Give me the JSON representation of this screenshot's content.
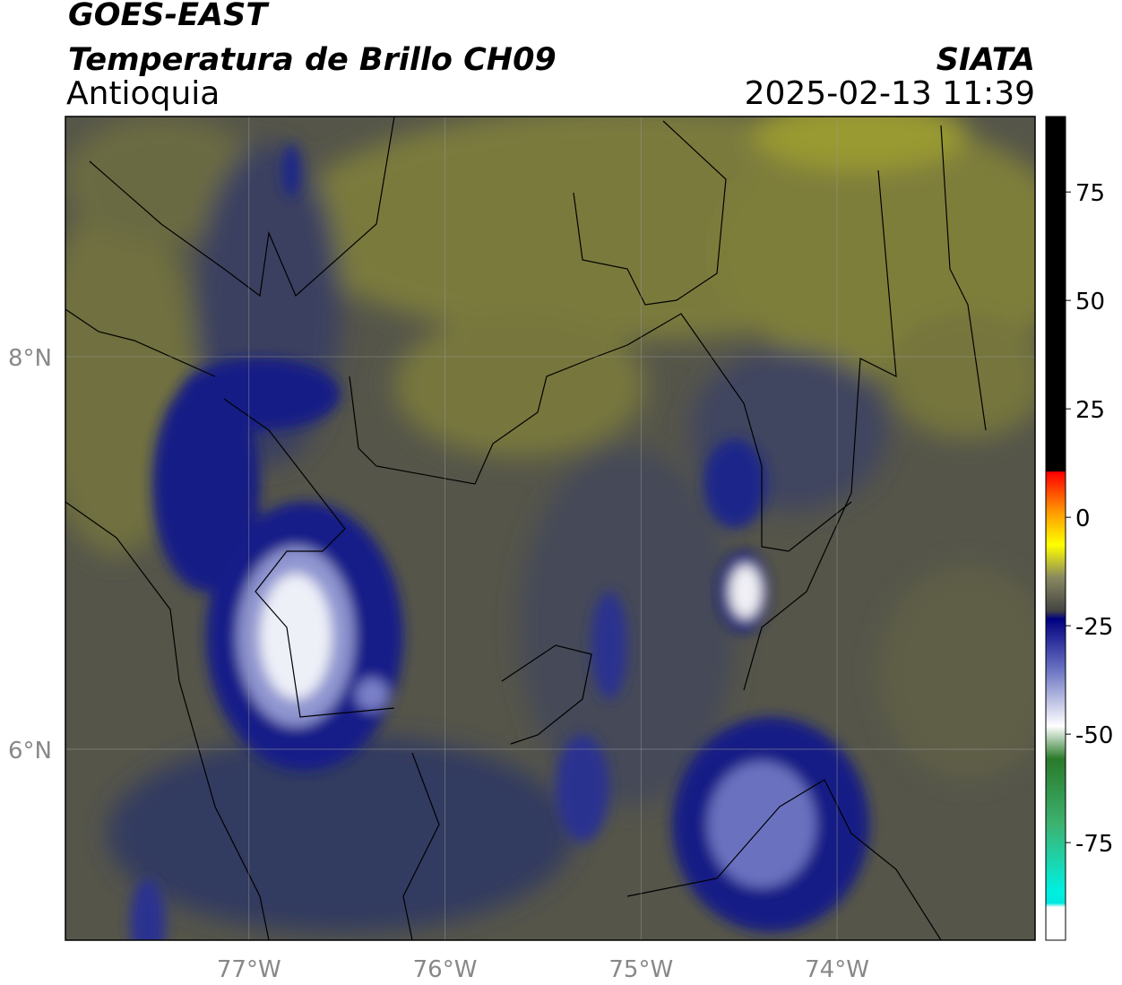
{
  "header": {
    "title": "GOES-EAST",
    "subtitle": "Temperatura de Brillo CH09",
    "region": "Antioquia",
    "source": "SIATA",
    "datetime": "2025-02-13 11:39"
  },
  "map": {
    "xlim": [
      -77.936,
      -72.99
    ],
    "ylim": [
      5.027,
      9.224
    ],
    "xticks": [
      {
        "value": -77,
        "label": "77°W"
      },
      {
        "value": -76,
        "label": "76°W"
      },
      {
        "value": -75,
        "label": "75°W"
      },
      {
        "value": -74,
        "label": "74°W"
      }
    ],
    "yticks": [
      {
        "value": 8,
        "label": "8°N"
      },
      {
        "value": 6,
        "label": "6°N"
      }
    ]
  },
  "colorbar": {
    "lim": [
      -97.5,
      92.4
    ],
    "ticks": [
      75,
      50,
      25,
      0,
      -25,
      -50,
      -75
    ]
  }
}
